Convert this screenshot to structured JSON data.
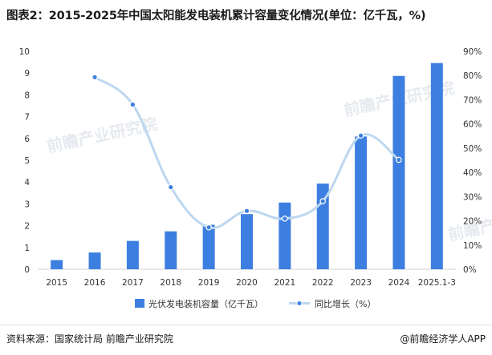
{
  "title": "图表2：2015-2025年中国太阳能发电装机累计容量变化情况(单位：亿千瓦，%)",
  "source": "资料来源：国家统计局 前瞻产业研究院",
  "brand": "@前瞻经济学人APP",
  "watermark": "前瞻产业研究院",
  "colors": {
    "bar": "#3d7fe0",
    "line": "#bdd7f0",
    "marker": "#3d7fe0"
  },
  "chart_data": {
    "type": "bar",
    "categories": [
      "2015",
      "2016",
      "2017",
      "2018",
      "2019",
      "2020",
      "2021",
      "2022",
      "2023",
      "2024",
      "2025.1-3"
    ],
    "series": [
      {
        "name": "光伏发电装机容量（亿千瓦）",
        "type": "bar",
        "axis": "left",
        "values": [
          0.42,
          0.77,
          1.3,
          1.74,
          2.04,
          2.53,
          3.06,
          3.93,
          6.09,
          8.87,
          9.46
        ]
      },
      {
        "name": "同比增长（%）",
        "type": "line",
        "axis": "right",
        "values": [
          null,
          79.3,
          68.0,
          33.9,
          17.3,
          24.1,
          20.9,
          28.1,
          55.2,
          45.2,
          null
        ]
      }
    ],
    "y_left": {
      "min": 0,
      "max": 10,
      "ticks": [
        "0",
        "1",
        "2",
        "3",
        "4",
        "5",
        "6",
        "7",
        "8",
        "9",
        "10"
      ]
    },
    "y_right": {
      "min": 0,
      "max": 90,
      "ticks": [
        "0%",
        "10%",
        "20%",
        "30%",
        "40%",
        "50%",
        "60%",
        "70%",
        "80%",
        "90%"
      ]
    },
    "grid": false,
    "legend_position": "bottom"
  }
}
